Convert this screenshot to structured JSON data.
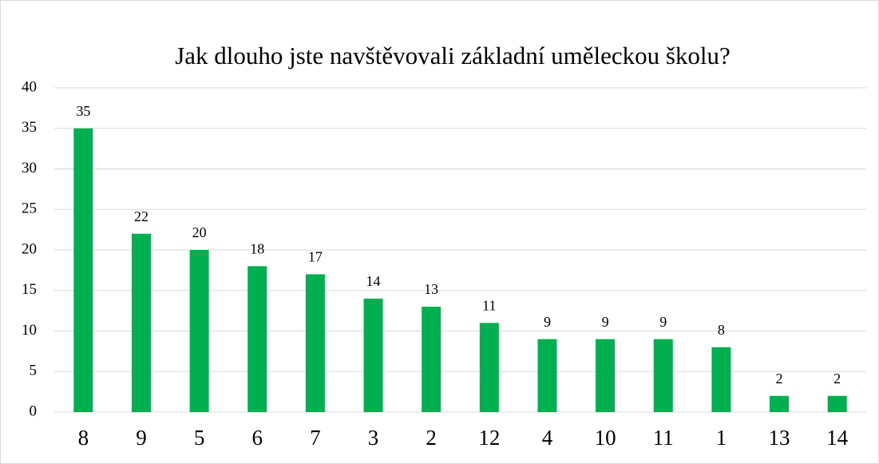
{
  "chart_data": {
    "type": "bar",
    "title": "Jak dlouho jste navštěvovali základní uměleckou školu?",
    "categories": [
      "8",
      "9",
      "5",
      "6",
      "7",
      "3",
      "2",
      "12",
      "4",
      "10",
      "11",
      "1",
      "13",
      "14"
    ],
    "values": [
      35,
      22,
      20,
      18,
      17,
      14,
      13,
      11,
      9,
      9,
      9,
      8,
      2,
      2
    ],
    "color": "#00b050",
    "ylim": [
      0,
      40
    ],
    "yticks": [
      0,
      5,
      10,
      15,
      20,
      25,
      30,
      35,
      40
    ],
    "grid": true
  }
}
